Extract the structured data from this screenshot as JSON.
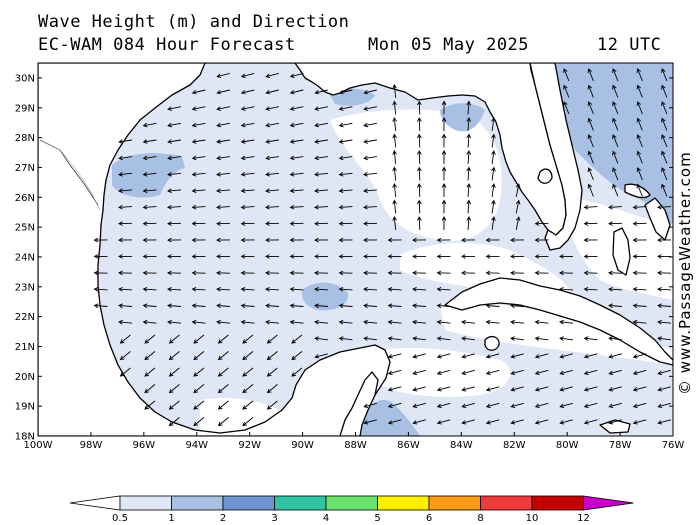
{
  "header": {
    "title_line1": "Wave Height (m) and Direction",
    "title_line2": "EC-WAM 084 Hour Forecast",
    "datetime": "Mon 05 May 2025",
    "utc": "12 UTC"
  },
  "credit": "© www.PassageWeather.com",
  "map": {
    "lon_range": [
      -100,
      -76
    ],
    "lat_range": [
      18,
      30.5
    ],
    "lat_labels": [
      "30N",
      "29N",
      "28N",
      "27N",
      "26N",
      "25N",
      "24N",
      "23N",
      "22N",
      "21N",
      "20N",
      "19N",
      "18N"
    ],
    "lon_labels": [
      "100W",
      "98W",
      "96W",
      "94W",
      "92W",
      "90W",
      "88W",
      "86W",
      "84W",
      "82W",
      "80W",
      "78W",
      "76W"
    ],
    "colors": {
      "land": "#ffffff",
      "sea_lt_0_5": "#ffffff",
      "band_0_5_1": "#dfe6f5",
      "band_1_2": "#a8c0e4",
      "coast": "#000000",
      "arrow": "#000000"
    },
    "wave_direction": "predominantly from east / east-southeast across the Gulf of Mexico"
  },
  "legend": {
    "labels": [
      "0.5",
      "1",
      "2",
      "3",
      "4",
      "5",
      "6",
      "8",
      "10",
      "12"
    ],
    "colors": [
      "#ffffff",
      "#dfe6f5",
      "#a8c0e4",
      "#6f96d2",
      "#2fc4a2",
      "#68e26a",
      "#ffee00",
      "#ff9a14",
      "#ef3b3b",
      "#c40000",
      "#c800c8"
    ]
  }
}
